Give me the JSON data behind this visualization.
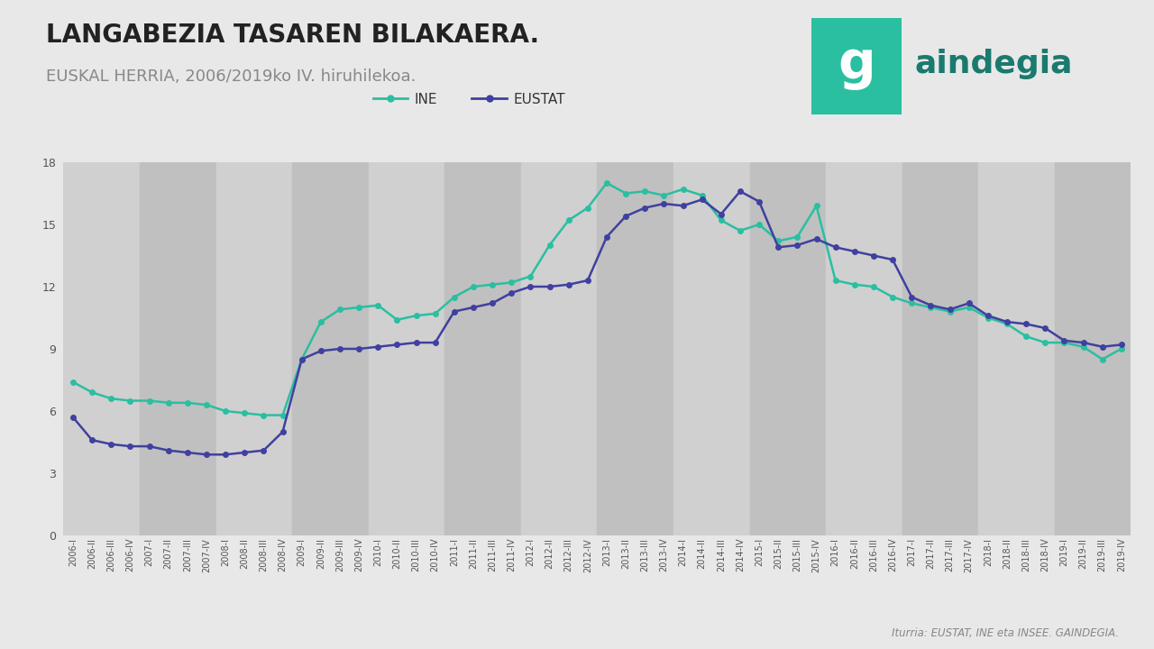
{
  "title_line1": "LANGABEZIA TASAREN BILAKAERA.",
  "title_line2": "EUSKAL HERRIA, 2006/2019ko IV. hiruhilekoa.",
  "source": "Iturria: EUSTAT, INE eta INSEE. GAINDEGIA.",
  "ine_label": "INE",
  "eustat_label": "EUSTAT",
  "ine_color": "#2abfa0",
  "eustat_color": "#4040a0",
  "background_color": "#e8e8e8",
  "plot_bg_color": "#d8d8d8",
  "stripe_color": "#c8c8c8",
  "ylim": [
    0,
    18
  ],
  "yticks": [
    0,
    3,
    6,
    9,
    12,
    15,
    18
  ],
  "labels": [
    "2006-I",
    "2006-II",
    "2006-III",
    "2006-IV",
    "2007-I",
    "2007-II",
    "2007-III",
    "2007-IV",
    "2008-I",
    "2008-II",
    "2008-III",
    "2008-IV",
    "2009-I",
    "2009-II",
    "2009-III",
    "2009-IV",
    "2010-I",
    "2010-II",
    "2010-III",
    "2010-IV",
    "2011-I",
    "2011-II",
    "2011-III",
    "2011-IV",
    "2012-I",
    "2012-II",
    "2012-III",
    "2012-IV",
    "2013-I",
    "2013-II",
    "2013-III",
    "2013-IV",
    "2014-I",
    "2014-II",
    "2014-III",
    "2014-IV",
    "2015-I",
    "2015-II",
    "2015-III",
    "2015-IV",
    "2016-I",
    "2016-II",
    "2016-III",
    "2016-IV",
    "2017-I",
    "2017-II",
    "2017-III",
    "2017-IV",
    "2018-I",
    "2018-II",
    "2018-III",
    "2018-IV",
    "2019-I",
    "2019-II",
    "2019-III",
    "2019-IV"
  ],
  "ine_values": [
    7.4,
    6.9,
    6.6,
    6.5,
    6.5,
    6.4,
    6.4,
    6.3,
    6.0,
    5.9,
    5.8,
    5.8,
    8.5,
    10.3,
    10.9,
    11.0,
    11.1,
    10.4,
    10.6,
    10.7,
    11.5,
    12.0,
    12.1,
    12.2,
    12.5,
    14.0,
    15.2,
    15.8,
    17.0,
    16.5,
    16.6,
    16.4,
    16.7,
    16.4,
    15.2,
    14.7,
    15.0,
    14.2,
    14.4,
    15.9,
    12.3,
    12.1,
    12.0,
    11.5,
    11.2,
    11.0,
    10.8,
    11.0,
    10.5,
    10.2,
    9.6,
    9.3,
    9.3,
    9.1,
    8.5,
    9.0
  ],
  "eustat_values": [
    5.7,
    4.6,
    4.4,
    4.3,
    4.3,
    4.1,
    4.0,
    3.9,
    3.9,
    4.0,
    4.1,
    5.0,
    8.5,
    8.9,
    9.0,
    9.0,
    9.1,
    9.2,
    9.3,
    9.3,
    10.8,
    11.0,
    11.2,
    11.7,
    12.0,
    12.0,
    12.1,
    12.3,
    14.4,
    15.4,
    15.8,
    16.0,
    15.9,
    16.2,
    15.5,
    16.6,
    16.1,
    13.9,
    14.0,
    14.3,
    13.9,
    13.7,
    13.5,
    13.3,
    11.5,
    11.1,
    10.9,
    11.2,
    10.6,
    10.3,
    10.2,
    10.0,
    9.4,
    9.3,
    9.1,
    9.2
  ],
  "logo_box_color": "#2abfa0",
  "logo_text_color": "#2abfa0",
  "title_color": "#222222",
  "subtitle_color": "#888888"
}
